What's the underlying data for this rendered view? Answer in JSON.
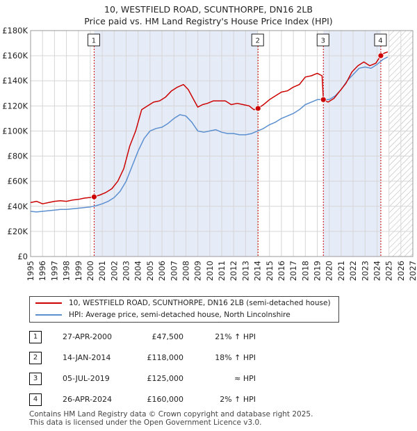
{
  "header": {
    "title": "10, WESTFIELD ROAD, SCUNTHORPE, DN16 2LB",
    "subtitle": "Price paid vs. HM Land Registry's House Price Index (HPI)"
  },
  "legend": {
    "property_label": "10, WESTFIELD ROAD, SCUNTHORPE, DN16 2LB (semi-detached house)",
    "hpi_label": "HPI: Average price, semi-detached house, North Lincolnshire"
  },
  "transactions": [
    {
      "num": "1",
      "date": "27-APR-2000",
      "price": "£47,500",
      "hpi": "21% ↑ HPI"
    },
    {
      "num": "2",
      "date": "14-JAN-2014",
      "price": "£118,000",
      "hpi": "18% ↑ HPI"
    },
    {
      "num": "3",
      "date": "05-JUL-2019",
      "price": "£125,000",
      "hpi": "≈ HPI"
    },
    {
      "num": "4",
      "date": "26-APR-2024",
      "price": "£160,000",
      "hpi": "2% ↑ HPI"
    }
  ],
  "footer": {
    "line1": "Contains HM Land Registry data © Crown copyright and database right 2025.",
    "line2": "This data is licensed under the Open Government Licence v3.0."
  },
  "colors": {
    "property": "#cc0000",
    "hpi": "#5b8fcf",
    "shade": "#e6ebf8",
    "grid": "#d6d6d6"
  },
  "chart_data": {
    "type": "line",
    "xlim": [
      1995,
      2027
    ],
    "ylim": [
      0,
      180000
    ],
    "x_ticks": [
      1995,
      1996,
      1997,
      1998,
      1999,
      2000,
      2001,
      2002,
      2003,
      2004,
      2005,
      2006,
      2007,
      2008,
      2009,
      2010,
      2011,
      2012,
      2013,
      2014,
      2015,
      2016,
      2017,
      2018,
      2019,
      2020,
      2021,
      2022,
      2023,
      2024,
      2025,
      2026,
      2027
    ],
    "y_ticks": [
      0,
      20000,
      40000,
      60000,
      80000,
      100000,
      120000,
      140000,
      160000,
      180000
    ],
    "y_tick_labels": [
      "£0",
      "£20K",
      "£40K",
      "£60K",
      "£80K",
      "£100K",
      "£120K",
      "£140K",
      "£160K",
      "£180K"
    ],
    "shaded_ranges": [
      [
        2000.32,
        2014.04
      ],
      [
        2019.51,
        2024.32
      ]
    ],
    "forecast_hatch_from": 2025.0,
    "series": [
      {
        "name": "10, WESTFIELD ROAD, SCUNTHORPE, DN16 2LB (semi-detached house)",
        "x": [
          1995.0,
          1995.5,
          1996.0,
          1996.5,
          1997.0,
          1997.5,
          1998.0,
          1998.5,
          1999.0,
          1999.5,
          2000.0,
          2000.32,
          2000.8,
          2001.3,
          2001.8,
          2002.3,
          2002.8,
          2003.3,
          2003.8,
          2004.3,
          2004.8,
          2005.3,
          2005.8,
          2006.3,
          2006.8,
          2007.3,
          2007.8,
          2008.2,
          2008.6,
          2009.0,
          2009.4,
          2009.8,
          2010.3,
          2010.8,
          2011.3,
          2011.8,
          2012.3,
          2012.8,
          2013.3,
          2013.7,
          2014.04,
          2014.5,
          2015.0,
          2015.5,
          2016.0,
          2016.5,
          2017.0,
          2017.5,
          2018.0,
          2018.5,
          2019.0,
          2019.4,
          2019.51,
          2019.9,
          2020.4,
          2020.9,
          2021.4,
          2021.9,
          2022.4,
          2022.9,
          2023.4,
          2023.9,
          2024.32,
          2024.6,
          2024.9
        ],
        "values": [
          43000,
          44000,
          42000,
          43000,
          44000,
          44500,
          44000,
          45000,
          45500,
          46500,
          47000,
          47500,
          49000,
          51000,
          54000,
          60000,
          70000,
          88000,
          100000,
          117000,
          120000,
          123000,
          124000,
          127000,
          132000,
          135000,
          137000,
          133000,
          126000,
          119000,
          121000,
          122000,
          124000,
          124000,
          124000,
          121000,
          122000,
          121000,
          120000,
          117000,
          118000,
          121000,
          125000,
          128000,
          131000,
          132000,
          135000,
          137000,
          143000,
          144000,
          146000,
          144000,
          125000,
          123000,
          126000,
          132000,
          138000,
          147000,
          152000,
          155000,
          152000,
          154000,
          160000,
          162000,
          163000
        ]
      },
      {
        "name": "HPI: Average price, semi-detached house, North Lincolnshire",
        "x": [
          1995.0,
          1995.5,
          1996.0,
          1996.5,
          1997.0,
          1997.5,
          1998.0,
          1998.5,
          1999.0,
          1999.5,
          2000.0,
          2000.5,
          2001.0,
          2001.5,
          2002.0,
          2002.5,
          2003.0,
          2003.5,
          2004.0,
          2004.5,
          2005.0,
          2005.5,
          2006.0,
          2006.5,
          2007.0,
          2007.5,
          2008.0,
          2008.5,
          2009.0,
          2009.5,
          2010.0,
          2010.5,
          2011.0,
          2011.5,
          2012.0,
          2012.5,
          2013.0,
          2013.5,
          2014.0,
          2014.5,
          2015.0,
          2015.5,
          2016.0,
          2016.5,
          2017.0,
          2017.5,
          2018.0,
          2018.5,
          2019.0,
          2019.5,
          2020.0,
          2020.5,
          2021.0,
          2021.5,
          2022.0,
          2022.5,
          2023.0,
          2023.5,
          2024.0,
          2024.5,
          2024.9
        ],
        "values": [
          36000,
          35500,
          36000,
          36500,
          37000,
          37500,
          37500,
          38000,
          38500,
          39000,
          39500,
          40500,
          42000,
          44000,
          47000,
          52000,
          60000,
          72000,
          84000,
          94000,
          100000,
          102000,
          103000,
          106000,
          110000,
          113000,
          112000,
          107000,
          100000,
          99000,
          100000,
          101000,
          99000,
          98000,
          98000,
          97000,
          97000,
          98000,
          100000,
          102000,
          105000,
          107000,
          110000,
          112000,
          114000,
          117000,
          121000,
          123000,
          125000,
          125000,
          125000,
          128000,
          133000,
          140000,
          145000,
          150000,
          151000,
          150000,
          153000,
          157000,
          159000
        ]
      }
    ],
    "sales": [
      {
        "label": "1",
        "x": 2000.32,
        "value": 47500
      },
      {
        "label": "2",
        "x": 2014.04,
        "value": 118000
      },
      {
        "label": "3",
        "x": 2019.51,
        "value": 125000
      },
      {
        "label": "4",
        "x": 2024.32,
        "value": 160000
      }
    ]
  }
}
